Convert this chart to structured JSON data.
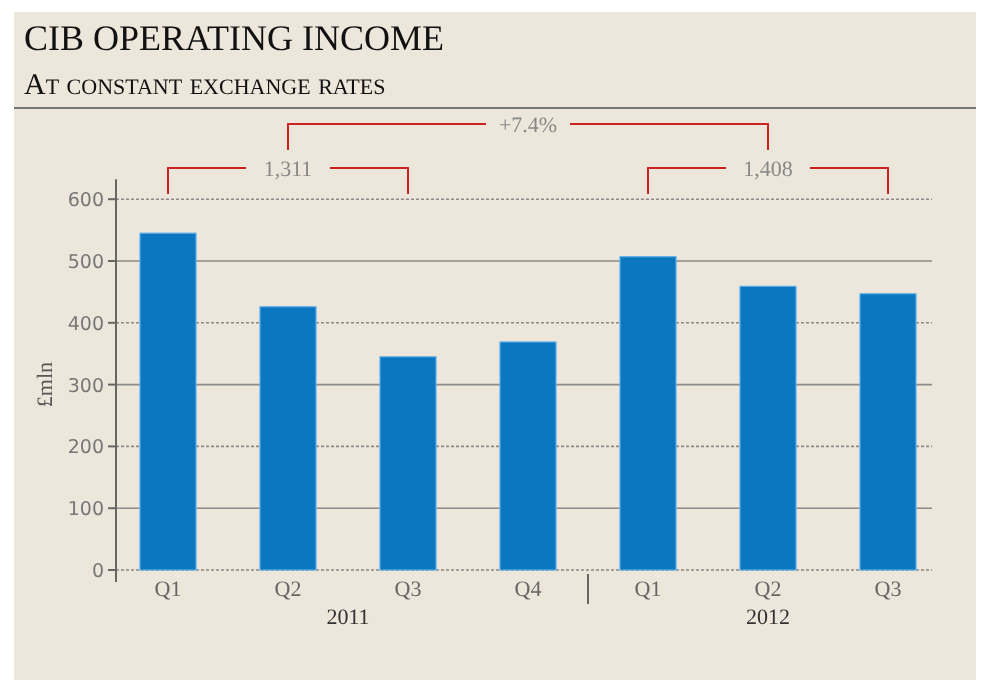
{
  "chart_data": {
    "type": "bar",
    "title": "CIB OPERATING INCOME",
    "subtitle": "At constant exchange rates",
    "ylabel": "£mln",
    "categories": [
      "Q1",
      "Q2",
      "Q3",
      "Q4",
      "Q1",
      "Q2",
      "Q3"
    ],
    "values": [
      545,
      426,
      345,
      369,
      507,
      459,
      447
    ],
    "color": "#0a77c0",
    "ylim": [
      0,
      600
    ],
    "yticks": [
      0,
      100,
      200,
      300,
      400,
      500,
      600
    ],
    "grid": "y",
    "annotations": [
      "2011",
      "2012",
      "1,311",
      "1,408",
      "+7.4%"
    ]
  }
}
